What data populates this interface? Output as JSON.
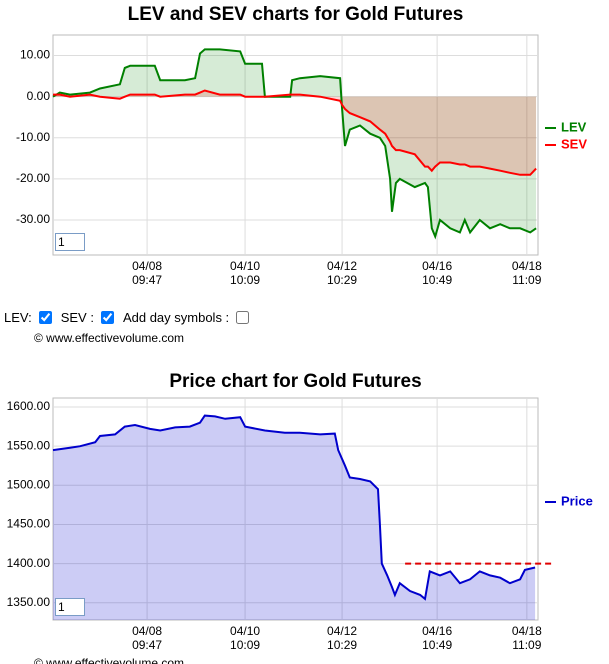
{
  "chart_data": [
    {
      "type": "line",
      "title": "LEV and SEV charts for Gold Futures",
      "x": [
        0,
        1.4,
        3.5,
        7.6,
        9.7,
        13.8,
        14.8,
        15.9,
        21.0,
        22.1,
        27.2,
        29.3,
        30.3,
        31.3,
        34.4,
        38.6,
        39.6,
        43.1,
        43.7,
        48.9,
        49.3,
        50.9,
        55.1,
        59.2,
        59.6,
        60.2,
        61.2,
        63.3,
        65.4,
        67.4,
        68.5,
        69.5,
        69.9,
        70.7,
        71.5,
        74.6,
        76.7,
        77.3,
        78.1,
        78.8,
        79.8,
        81.9,
        83.9,
        84.9,
        86.0,
        88.0,
        90.1,
        92.2,
        94.2,
        96.3,
        98.4,
        99.6
      ],
      "series": [
        {
          "name": "LEV",
          "color": "#008000",
          "values": [
            0,
            1,
            0.5,
            1,
            2,
            3,
            7,
            7.5,
            7.5,
            4,
            4,
            4.5,
            10.5,
            11.5,
            11.5,
            11,
            8,
            8,
            0,
            0,
            4,
            4.5,
            5,
            4.5,
            -3,
            -12,
            -8,
            -7,
            -9,
            -10,
            -12,
            -20,
            -28,
            -21,
            -20,
            -22,
            -21,
            -22,
            -32,
            -34,
            -30,
            -32,
            -33,
            -30,
            -33,
            -30,
            -32,
            -31,
            -32,
            -32,
            -33,
            -32
          ]
        },
        {
          "name": "SEV",
          "color": "#ff0000",
          "values": [
            0.5,
            0.5,
            0,
            0.5,
            0,
            -0.5,
            0,
            0.5,
            0.5,
            0,
            0.5,
            0.5,
            1,
            1.5,
            0.5,
            0.5,
            0,
            0,
            0,
            0.5,
            0.5,
            0.5,
            0,
            -1,
            -2,
            -3,
            -4,
            -5,
            -6,
            -8,
            -9,
            -11,
            -12,
            -13,
            -13,
            -14,
            -17,
            -17,
            -18,
            -17,
            -16,
            -16,
            -16.5,
            -16.5,
            -17,
            -17,
            -17.5,
            -18,
            -18.5,
            -19,
            -19,
            -17.5
          ]
        }
      ],
      "xlim": [
        0,
        100
      ],
      "xticks": [
        {
          "value": 19.4,
          "label": "04/08\n09:47"
        },
        {
          "value": 39.6,
          "label": "04/10\n10:09"
        },
        {
          "value": 59.6,
          "label": "04/12\n10:29"
        },
        {
          "value": 79.2,
          "label": "04/16\n10:49"
        },
        {
          "value": 97.7,
          "label": "04/18\n11:09"
        }
      ],
      "ylim": [
        -38.5,
        15
      ],
      "yticks": [
        {
          "value": 10,
          "label": "10.00"
        },
        {
          "value": 0,
          "label": "0.00"
        },
        {
          "value": -10,
          "label": "-10.00"
        },
        {
          "value": -20,
          "label": "-20.00"
        },
        {
          "value": -30,
          "label": "-30.00"
        }
      ],
      "grid": true,
      "legend": "right",
      "zoom_input": "1"
    },
    {
      "type": "line",
      "title": "Price chart for Gold Futures",
      "x": [
        0,
        3.5,
        5.6,
        8.7,
        9.7,
        12.8,
        14.8,
        16.9,
        20.0,
        22.1,
        25.2,
        28.2,
        30.3,
        31.3,
        33.4,
        35.5,
        38.6,
        39.6,
        43.7,
        47.8,
        50.9,
        55.1,
        58.1,
        58.8,
        60.2,
        61.2,
        63.3,
        65.4,
        67.0,
        67.4,
        67.8,
        68.9,
        69.9,
        70.5,
        71.5,
        73.6,
        75.7,
        76.7,
        77.7,
        79.8,
        81.9,
        83.9,
        86.0,
        88.0,
        90.1,
        92.2,
        94.2,
        96.3,
        97.3,
        99.4
      ],
      "series": [
        {
          "name": "Price",
          "color": "#0000cc",
          "values": [
            1545,
            1548,
            1550,
            1555,
            1563,
            1565,
            1575,
            1577,
            1572,
            1570,
            1574,
            1575,
            1580,
            1589,
            1588,
            1585,
            1587,
            1575,
            1570,
            1567,
            1567,
            1565,
            1566,
            1545,
            1525,
            1510,
            1508,
            1505,
            1495,
            1450,
            1400,
            1385,
            1370,
            1360,
            1375,
            1365,
            1360,
            1355,
            1390,
            1385,
            1390,
            1375,
            1380,
            1390,
            1385,
            1382,
            1375,
            1380,
            1392,
            1395
          ]
        }
      ],
      "hline": {
        "y": 1400,
        "x": [
          72.6,
          103
        ],
        "color": "#e00000"
      },
      "xlim": [
        0,
        100
      ],
      "xticks": [
        {
          "value": 19.4,
          "label": "04/08\n09:47"
        },
        {
          "value": 39.6,
          "label": "04/10\n10:09"
        },
        {
          "value": 59.6,
          "label": "04/12\n10:29"
        },
        {
          "value": 79.2,
          "label": "04/16\n10:49"
        },
        {
          "value": 97.7,
          "label": "04/18\n11:09"
        }
      ],
      "ylim": [
        1328,
        1611.5
      ],
      "yticks": [
        {
          "value": 1600,
          "label": "1600.00"
        },
        {
          "value": 1550,
          "label": "1550.00"
        },
        {
          "value": 1500,
          "label": "1500.00"
        },
        {
          "value": 1450,
          "label": "1450.00"
        },
        {
          "value": 1400,
          "label": "1400.00"
        },
        {
          "value": 1350,
          "label": "1350.00"
        }
      ],
      "grid": true,
      "legend": "right",
      "zoom_input": "1"
    }
  ],
  "controls": [
    {
      "label": "LEV:",
      "checked": true
    },
    {
      "label": "SEV :",
      "checked": true
    },
    {
      "label": "Add day symbols :",
      "checked": false
    }
  ],
  "footers": [
    "© www.effectivevolume.com",
    "© www.effectivevolume.com"
  ]
}
